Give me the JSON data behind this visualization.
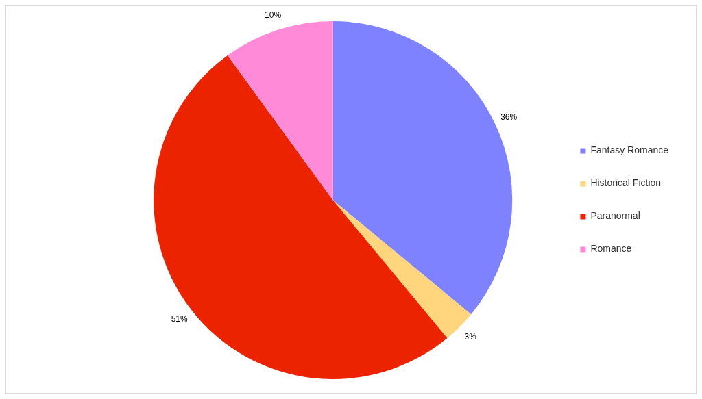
{
  "chart_data": {
    "type": "pie",
    "categories": [
      "Fantasy Romance",
      "Historical Fiction",
      "Paranormal",
      "Romance"
    ],
    "values": [
      36,
      3,
      51,
      10
    ],
    "colors": [
      "#7f82ff",
      "#ffd57e",
      "#eb2300",
      "#ff8ad8"
    ],
    "value_labels": [
      "36%",
      "3%",
      "51%",
      "10%"
    ],
    "legend": "right"
  }
}
